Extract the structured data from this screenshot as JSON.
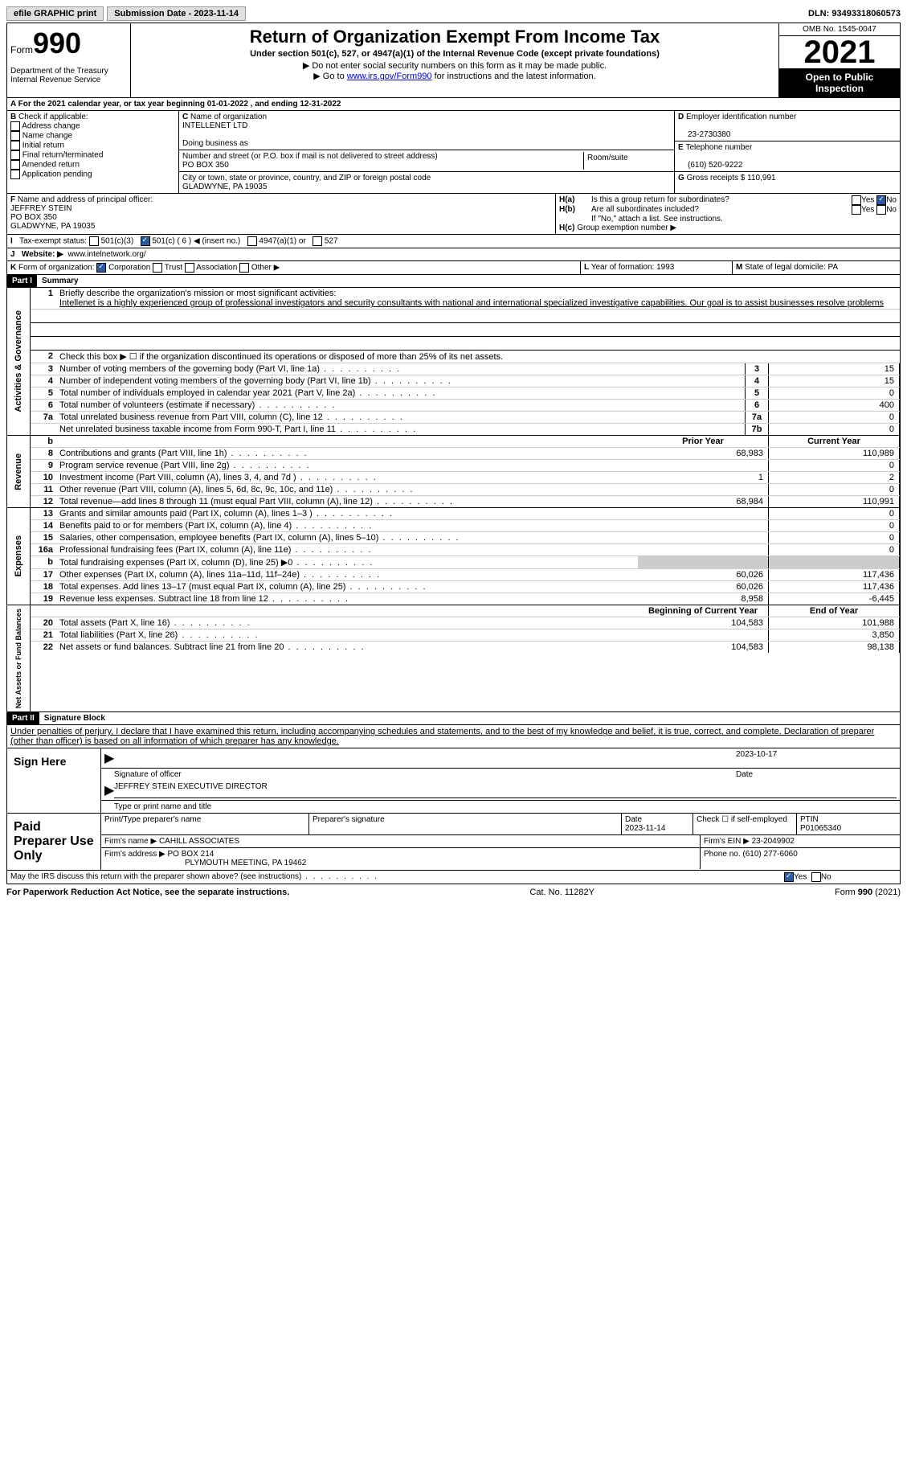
{
  "topbar": {
    "efile": "efile GRAPHIC print",
    "submission": "Submission Date - 2023-11-14",
    "dln": "DLN: 93493318060573"
  },
  "header": {
    "form": "Form",
    "formnum": "990",
    "dept": "Department of the Treasury Internal Revenue Service",
    "title": "Return of Organization Exempt From Income Tax",
    "sub": "Under section 501(c), 527, or 4947(a)(1) of the Internal Revenue Code (except private foundations)",
    "note1": "Do not enter social security numbers on this form as it may be made public.",
    "note2_pre": "Go to ",
    "note2_link": "www.irs.gov/Form990",
    "note2_post": " for instructions and the latest information.",
    "omb": "OMB No. 1545-0047",
    "year": "2021",
    "open": "Open to Public Inspection"
  },
  "A": {
    "text": "For the 2021 calendar year, or tax year beginning 01-01-2022   , and ending 12-31-2022"
  },
  "B": {
    "label": "Check if applicable:",
    "opts": [
      "Address change",
      "Name change",
      "Initial return",
      "Final return/terminated",
      "Amended return",
      "Application pending"
    ]
  },
  "C": {
    "name_label": "Name of organization",
    "name": "INTELLENET LTD",
    "dba_label": "Doing business as",
    "addr_label": "Number and street (or P.O. box if mail is not delivered to street address)",
    "room_label": "Room/suite",
    "addr": "PO BOX 350",
    "city_label": "City or town, state or province, country, and ZIP or foreign postal code",
    "city": "GLADWYNE, PA  19035"
  },
  "D": {
    "label": "Employer identification number",
    "val": "23-2730380"
  },
  "E": {
    "label": "Telephone number",
    "val": "(610) 520-9222"
  },
  "G": {
    "label": "Gross receipts $",
    "val": "110,991"
  },
  "F": {
    "label": "Name and address of principal officer:",
    "name": "JEFFREY STEIN",
    "addr": "PO BOX 350",
    "city": "GLADWYNE, PA  19035"
  },
  "H": {
    "a": "Is this a group return for subordinates?",
    "b": "Are all subordinates included?",
    "b_note": "If \"No,\" attach a list. See instructions.",
    "c": "Group exemption number ▶",
    "yes": "Yes",
    "no": "No"
  },
  "I": {
    "label": "Tax-exempt status:",
    "opt1": "501(c)(3)",
    "opt2": "501(c) ( 6 ) ◀ (insert no.)",
    "opt3": "4947(a)(1) or",
    "opt4": "527"
  },
  "J": {
    "label": "Website: ▶",
    "val": "www.intelnetwork.org/"
  },
  "K": {
    "label": "Form of organization:",
    "opts": [
      "Corporation",
      "Trust",
      "Association",
      "Other ▶"
    ]
  },
  "L": {
    "label": "Year of formation:",
    "val": "1993"
  },
  "M": {
    "label": "State of legal domicile:",
    "val": "PA"
  },
  "part1": {
    "hdr": "Part I",
    "title": "Summary",
    "gov_label": "Activities & Governance",
    "rev_label": "Revenue",
    "exp_label": "Expenses",
    "net_label": "Net Assets or Fund Balances",
    "q1": "Briefly describe the organization's mission or most significant activities:",
    "mission": "Intellenet is a highly experienced group of professional investigators and security consultants with national and international specialized investigative capabilities. Our goal is to assist businesses resolve problems",
    "q2": "Check this box ▶ ☐  if the organization discontinued its operations or disposed of more than 25% of its net assets.",
    "lines_gov": [
      {
        "n": "3",
        "d": "Number of voting members of the governing body (Part VI, line 1a)",
        "b": "3",
        "v": "15"
      },
      {
        "n": "4",
        "d": "Number of independent voting members of the governing body (Part VI, line 1b)",
        "b": "4",
        "v": "15"
      },
      {
        "n": "5",
        "d": "Total number of individuals employed in calendar year 2021 (Part V, line 2a)",
        "b": "5",
        "v": "0"
      },
      {
        "n": "6",
        "d": "Total number of volunteers (estimate if necessary)",
        "b": "6",
        "v": "400"
      },
      {
        "n": "7a",
        "d": "Total unrelated business revenue from Part VIII, column (C), line 12",
        "b": "7a",
        "v": "0"
      },
      {
        "n": "",
        "d": "Net unrelated business taxable income from Form 990-T, Part I, line 11",
        "b": "7b",
        "v": "0"
      }
    ],
    "col_prior": "Prior Year",
    "col_current": "Current Year",
    "lines_rev": [
      {
        "n": "8",
        "d": "Contributions and grants (Part VIII, line 1h)",
        "p": "68,983",
        "c": "110,989"
      },
      {
        "n": "9",
        "d": "Program service revenue (Part VIII, line 2g)",
        "p": "",
        "c": "0"
      },
      {
        "n": "10",
        "d": "Investment income (Part VIII, column (A), lines 3, 4, and 7d )",
        "p": "1",
        "c": "2"
      },
      {
        "n": "11",
        "d": "Other revenue (Part VIII, column (A), lines 5, 6d, 8c, 9c, 10c, and 11e)",
        "p": "",
        "c": "0"
      },
      {
        "n": "12",
        "d": "Total revenue—add lines 8 through 11 (must equal Part VIII, column (A), line 12)",
        "p": "68,984",
        "c": "110,991"
      }
    ],
    "lines_exp": [
      {
        "n": "13",
        "d": "Grants and similar amounts paid (Part IX, column (A), lines 1–3 )",
        "p": "",
        "c": "0"
      },
      {
        "n": "14",
        "d": "Benefits paid to or for members (Part IX, column (A), line 4)",
        "p": "",
        "c": "0"
      },
      {
        "n": "15",
        "d": "Salaries, other compensation, employee benefits (Part IX, column (A), lines 5–10)",
        "p": "",
        "c": "0"
      },
      {
        "n": "16a",
        "d": "Professional fundraising fees (Part IX, column (A), line 11e)",
        "p": "",
        "c": "0"
      },
      {
        "n": "b",
        "d": "Total fundraising expenses (Part IX, column (D), line 25) ▶0",
        "p": "gray",
        "c": "gray"
      },
      {
        "n": "17",
        "d": "Other expenses (Part IX, column (A), lines 11a–11d, 11f–24e)",
        "p": "60,026",
        "c": "117,436"
      },
      {
        "n": "18",
        "d": "Total expenses. Add lines 13–17 (must equal Part IX, column (A), line 25)",
        "p": "60,026",
        "c": "117,436"
      },
      {
        "n": "19",
        "d": "Revenue less expenses. Subtract line 18 from line 12",
        "p": "8,958",
        "c": "-6,445"
      }
    ],
    "col_begin": "Beginning of Current Year",
    "col_end": "End of Year",
    "lines_net": [
      {
        "n": "20",
        "d": "Total assets (Part X, line 16)",
        "p": "104,583",
        "c": "101,988"
      },
      {
        "n": "21",
        "d": "Total liabilities (Part X, line 26)",
        "p": "",
        "c": "3,850"
      },
      {
        "n": "22",
        "d": "Net assets or fund balances. Subtract line 21 from line 20",
        "p": "104,583",
        "c": "98,138"
      }
    ]
  },
  "part2": {
    "hdr": "Part II",
    "title": "Signature Block",
    "decl": "Under penalties of perjury, I declare that I have examined this return, including accompanying schedules and statements, and to the best of my knowledge and belief, it is true, correct, and complete. Declaration of preparer (other than officer) is based on all information of which preparer has any knowledge.",
    "sign_here": "Sign Here",
    "sig_officer": "Signature of officer",
    "sig_date": "2023-10-17",
    "date_label": "Date",
    "officer_name": "JEFFREY STEIN  EXECUTIVE DIRECTOR",
    "type_label": "Type or print name and title",
    "paid": "Paid Preparer Use Only",
    "prep_name_label": "Print/Type preparer's name",
    "prep_sig_label": "Preparer's signature",
    "prep_date_label": "Date",
    "prep_date": "2023-11-14",
    "check_self": "Check ☐ if self-employed",
    "ptin_label": "PTIN",
    "ptin": "P01065340",
    "firm_name_label": "Firm's name    ▶",
    "firm_name": "CAHILL ASSOCIATES",
    "firm_ein_label": "Firm's EIN ▶",
    "firm_ein": "23-2049902",
    "firm_addr_label": "Firm's address ▶",
    "firm_addr": "PO BOX 214",
    "firm_city": "PLYMOUTH MEETING, PA  19462",
    "phone_label": "Phone no.",
    "phone": "(610) 277-6060",
    "discuss": "May the IRS discuss this return with the preparer shown above? (see instructions)",
    "yes": "Yes",
    "no": "No"
  },
  "footer": {
    "left": "For Paperwork Reduction Act Notice, see the separate instructions.",
    "mid": "Cat. No. 11282Y",
    "right": "Form 990 (2021)"
  }
}
